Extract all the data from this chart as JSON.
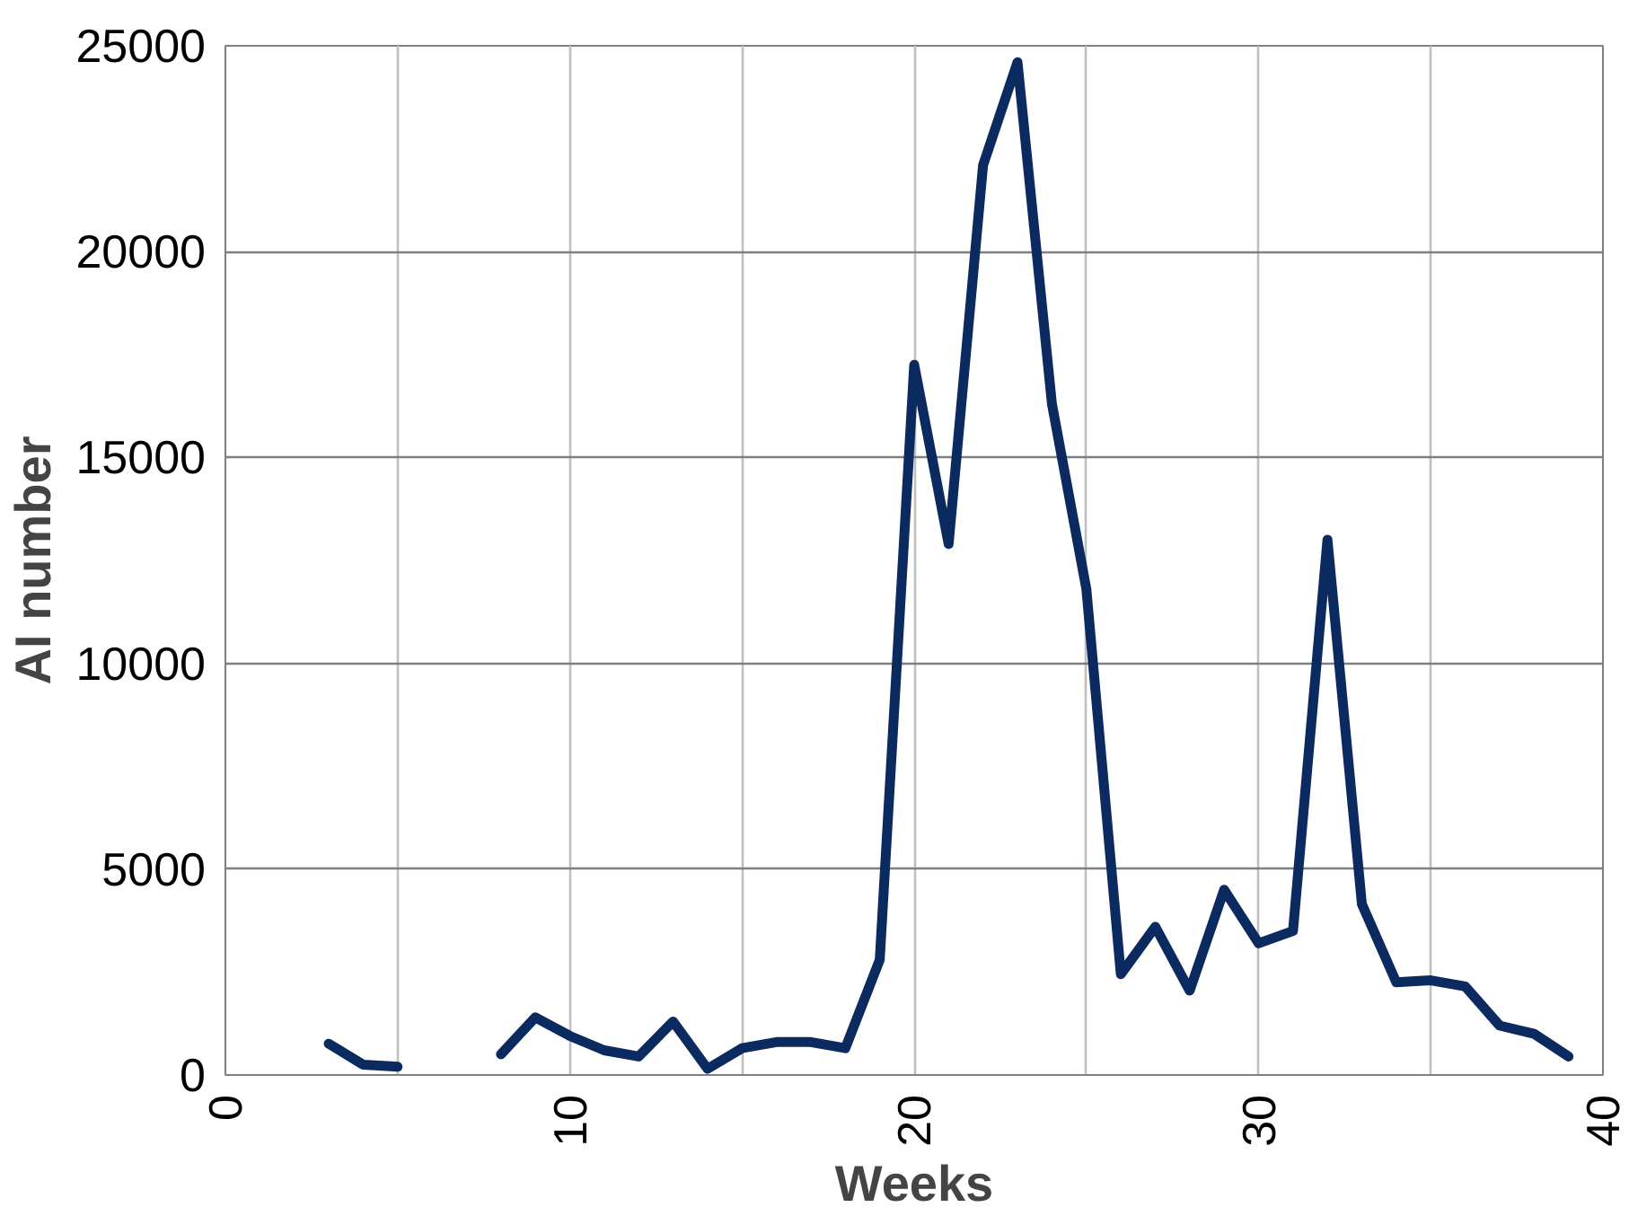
{
  "chart_data": {
    "type": "line",
    "xlabel": "Weeks",
    "ylabel": "AI number",
    "xlim": [
      0,
      40
    ],
    "xticks": [
      0,
      10,
      20,
      30,
      40
    ],
    "ylim": [
      0,
      25000
    ],
    "yticks": [
      0,
      5000,
      10000,
      15000,
      20000,
      25000
    ],
    "grid": true,
    "line_style": "solid",
    "marker": "none",
    "series": [
      {
        "color": "#0b2a5f",
        "x": [
          3,
          4,
          5,
          6,
          7,
          8,
          9,
          10,
          11,
          12,
          13,
          14,
          15,
          16,
          17,
          18,
          19,
          20,
          21,
          22,
          23,
          24,
          25,
          26,
          27,
          28,
          29,
          30,
          31,
          32,
          33,
          34,
          35,
          36,
          37,
          38,
          39
        ],
        "values": [
          760,
          250,
          200,
          null,
          null,
          500,
          1400,
          950,
          600,
          450,
          1300,
          150,
          650,
          800,
          800,
          650,
          2800,
          17250,
          12900,
          22100,
          24600,
          16300,
          11800,
          2450,
          3600,
          2050,
          4500,
          3200,
          3500,
          13000,
          4150,
          2250,
          2300,
          2150,
          1200,
          1000,
          450
        ]
      }
    ]
  }
}
